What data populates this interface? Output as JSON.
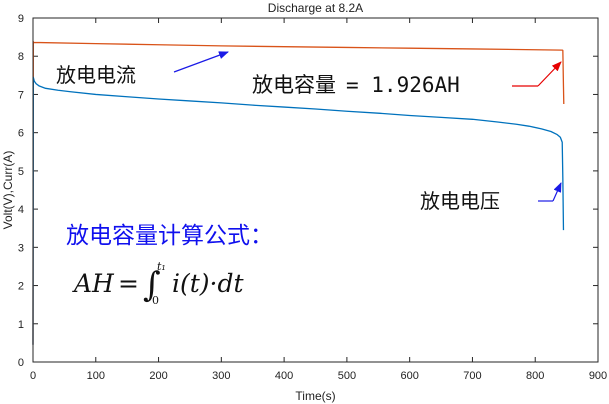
{
  "chart_data": {
    "type": "line",
    "title": "Discharge at 8.2A",
    "xlabel": "Time(s)",
    "ylabel": "Volt(V),Curr(A)",
    "xlim": [
      0,
      900
    ],
    "ylim": [
      0,
      9
    ],
    "xticks": [
      "0",
      "100",
      "200",
      "300",
      "400",
      "500",
      "600",
      "700",
      "800",
      "900"
    ],
    "yticks": [
      "0",
      "1",
      "2",
      "3",
      "4",
      "5",
      "6",
      "7",
      "8",
      "9"
    ],
    "grid": false,
    "series": [
      {
        "color": "#d95319",
        "x": [
          0,
          0.5,
          1,
          100,
          200,
          300,
          400,
          500,
          600,
          700,
          800,
          843,
          844,
          845,
          845.5
        ],
        "y": [
          0.45,
          8.38,
          8.36,
          8.33,
          8.3,
          8.27,
          8.25,
          8.23,
          8.21,
          8.19,
          8.17,
          8.16,
          8.15,
          7.2,
          6.75
        ]
      },
      {
        "color": "#0072bd",
        "x": [
          0,
          0.5,
          2,
          5,
          10,
          20,
          40,
          60,
          100,
          150,
          200,
          250,
          300,
          350,
          400,
          450,
          500,
          550,
          600,
          650,
          700,
          740,
          770,
          790,
          810,
          825,
          835,
          840,
          843,
          844,
          845
        ],
        "y": [
          0.45,
          7.45,
          7.35,
          7.28,
          7.22,
          7.16,
          7.11,
          7.07,
          7.0,
          6.94,
          6.88,
          6.83,
          6.78,
          6.72,
          6.67,
          6.62,
          6.56,
          6.51,
          6.45,
          6.4,
          6.35,
          6.28,
          6.22,
          6.17,
          6.1,
          6.03,
          5.95,
          5.88,
          5.75,
          4.8,
          3.45
        ]
      }
    ],
    "annotations": {
      "current_label": "放电电流",
      "capacity_label": "放电容量",
      "capacity_value": "= 1.926AH",
      "voltage_label": "放电电压",
      "formula_heading": "放电容量计算公式：",
      "formula": {
        "lhs": "AH",
        "equals": "=",
        "integral": "∫",
        "upper": "t₁",
        "lower": "0",
        "integrand": "i(t)·dt"
      }
    }
  }
}
